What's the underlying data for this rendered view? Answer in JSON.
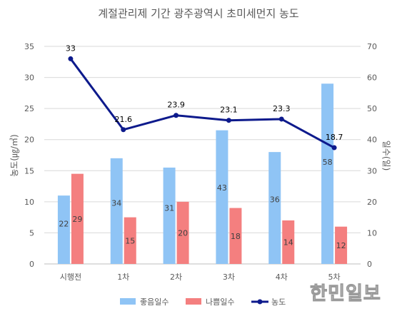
{
  "chart_data": {
    "type": "bar",
    "title": "계절관리제 기간 광주광역시 초미세먼지 농도",
    "categories": [
      "시행전",
      "1차",
      "2차",
      "3차",
      "4차",
      "5차"
    ],
    "series": [
      {
        "name": "좋음일수",
        "type": "bar",
        "axis": "right",
        "color": "#8fc4f5",
        "values": [
          22,
          34,
          31,
          43,
          36,
          58
        ]
      },
      {
        "name": "나쁨일수",
        "type": "bar",
        "axis": "right",
        "color": "#f47f7f",
        "values": [
          29,
          15,
          20,
          18,
          14,
          12
        ]
      },
      {
        "name": "농도",
        "type": "line",
        "axis": "left",
        "color": "#0d1a8c",
        "values": [
          33,
          21.6,
          23.9,
          23.1,
          23.3,
          18.7
        ]
      }
    ],
    "ylabel_left": "농도(㎍/㎥)",
    "ylabel_right": "일수(일)",
    "ylim_left": [
      0,
      35
    ],
    "yticks_left": [
      "0",
      "5",
      "10",
      "15",
      "20",
      "25",
      "30",
      "35"
    ],
    "ylim_right": [
      0,
      70
    ],
    "yticks_right": [
      "0",
      "10",
      "20",
      "30",
      "40",
      "50",
      "60",
      "70"
    ],
    "grid": true,
    "legend_position": "bottom"
  },
  "watermark": "한민일보"
}
